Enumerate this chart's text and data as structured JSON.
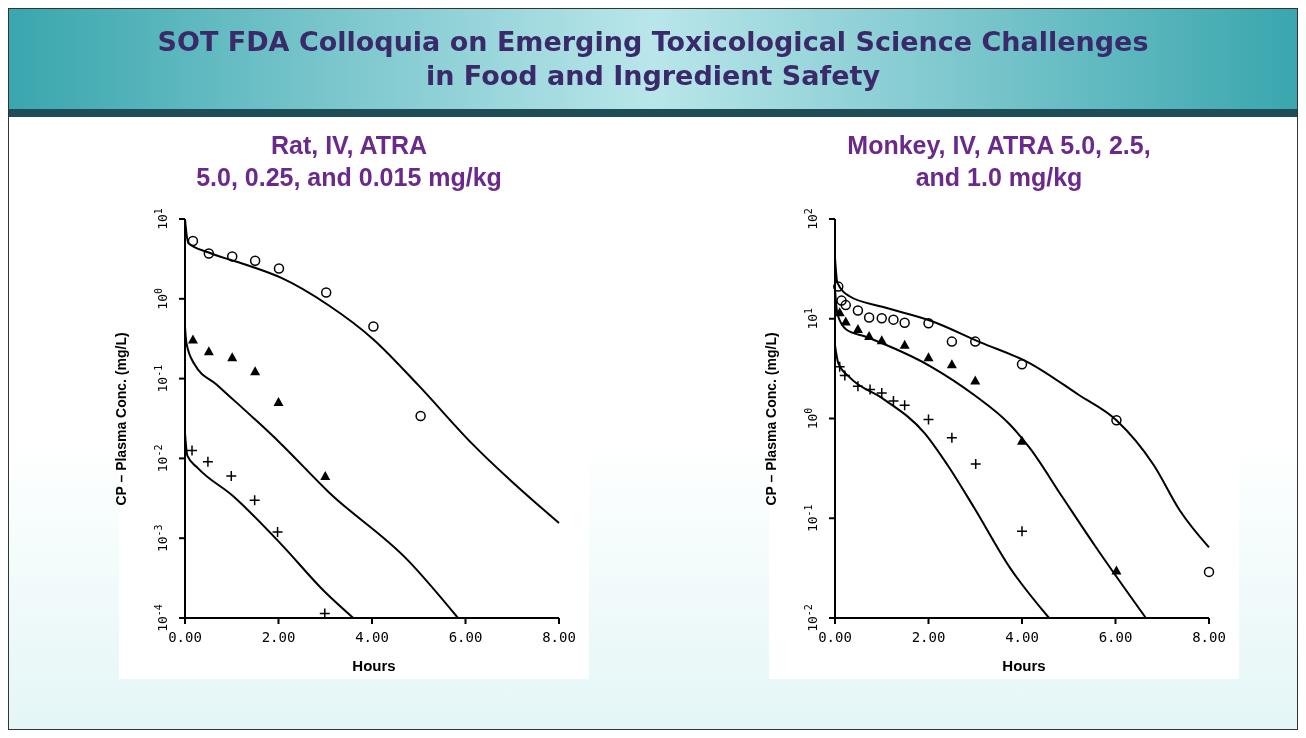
{
  "chart_data": [
    {
      "type": "scatter",
      "title": "Rat, IV, ATRA\n5.0, 0.25, and 0.015 mg/kg",
      "annotations": [
        "SOT FDA Colloquia on Emerging Toxicological Science Challenges\nin Food and Ingredient Safety"
      ],
      "xlabel": "Hours",
      "ylabel": "CP – Plasma Conc. (mg/L)",
      "log": "y",
      "xlim": [
        0,
        8
      ],
      "ylim": [
        0.0001,
        10
      ],
      "xticks": [
        {
          "value": 0,
          "label": "0.00"
        },
        {
          "value": 2,
          "label": "2.00"
        },
        {
          "value": 4,
          "label": "4.00"
        },
        {
          "value": 6,
          "label": "6.00"
        },
        {
          "value": 8,
          "label": "8.00"
        }
      ],
      "yticks": [
        {
          "value": 0.0001,
          "label": "10$^{-4}$"
        },
        {
          "value": 0.001,
          "label": "10$^{-3}$"
        },
        {
          "value": 0.01,
          "label": "10$^{-2}$"
        },
        {
          "value": 0.1,
          "label": "10$^{-1}$"
        },
        {
          "value": 1,
          "label": "10$^{0}$"
        },
        {
          "value": 10,
          "label": "10$^{1}$"
        }
      ],
      "series": [
        {
          "type": "line",
          "color": "#000000",
          "x": [
            0,
            0.07,
            0.51,
            1.37,
            2.05,
            3.07,
            4.03,
            4.98,
            6.14,
            8.0
          ],
          "values": [
            10,
            5.0,
            3.8,
            2.6,
            1.84,
            0.83,
            0.31,
            0.084,
            0.0153,
            0.00155
          ]
        },
        {
          "type": "line",
          "color": "#000000",
          "x": [
            0,
            0.03,
            0.2,
            0.68,
            2.05,
            3.07,
            4.78,
            5.84
          ],
          "values": [
            0.45,
            0.28,
            0.152,
            0.084,
            0.0153,
            0.0038,
            0.00052,
            0.0001
          ]
        },
        {
          "type": "line",
          "color": "#000000",
          "x": [
            0,
            0.05,
            0.27,
            1.02,
            2.05,
            3.0,
            3.6
          ],
          "values": [
            0.0207,
            0.0108,
            0.0076,
            0.0034,
            0.00085,
            0.00021,
            0.0001
          ]
        },
        {
          "marker": "circle",
          "color": "#000000",
          "x": [
            0.17,
            0.51,
            1.01,
            1.5,
            2.01,
            3.02,
            4.03,
            5.04
          ],
          "values": [
            5.3,
            3.7,
            3.4,
            3.0,
            2.4,
            1.2,
            0.45,
            0.034
          ]
        },
        {
          "marker": "triangle",
          "color": "#000000",
          "x": [
            0.17,
            0.51,
            1.01,
            1.5,
            2.0,
            3.0
          ],
          "values": [
            0.31,
            0.22,
            0.185,
            0.124,
            0.051,
            0.006
          ]
        },
        {
          "marker": "cross",
          "color": "#000000",
          "x": [
            0.15,
            0.49,
            0.99,
            1.49,
            1.98,
            2.99
          ],
          "values": [
            0.0126,
            0.0091,
            0.006,
            0.003,
            0.0012,
            0.000114
          ]
        }
      ]
    },
    {
      "type": "scatter",
      "title": "Monkey, IV, ATRA 5.0, 2.5,\nand 1.0 mg/kg",
      "xlabel": "Hours",
      "ylabel": "CP – Plasma Conc. (mg/L)",
      "log": "y",
      "xlim": [
        0,
        8
      ],
      "ylim": [
        0.01,
        100
      ],
      "xticks": [
        {
          "value": 0,
          "label": "0.00"
        },
        {
          "value": 2,
          "label": "2.00"
        },
        {
          "value": 4,
          "label": "4.00"
        },
        {
          "value": 6,
          "label": "6.00"
        },
        {
          "value": 8,
          "label": "8.00"
        }
      ],
      "yticks": [
        {
          "value": 0.01,
          "label": "10$^{-2}$"
        },
        {
          "value": 0.1,
          "label": "10$^{-1}$"
        },
        {
          "value": 1,
          "label": "10$^{0}$"
        },
        {
          "value": 10,
          "label": "10$^{1}$"
        },
        {
          "value": 100,
          "label": "10$^{2}$"
        }
      ],
      "series": [
        {
          "type": "line",
          "color": "#000000",
          "x": [
            0,
            0.05,
            0.31,
            1.01,
            2.06,
            3.11,
            4.16,
            5.21,
            6.02,
            6.82,
            7.38,
            8.0
          ],
          "values": [
            41,
            23,
            16.8,
            13.2,
            9.5,
            5.8,
            3.6,
            1.73,
            0.96,
            0.34,
            0.119,
            0.051
          ]
        },
        {
          "type": "line",
          "color": "#000000",
          "x": [
            0,
            0.05,
            0.24,
            0.66,
            2.06,
            2.97,
            3.74,
            4.16,
            4.86,
            5.56,
            6.65
          ],
          "values": [
            19.7,
            11.2,
            7.8,
            6.6,
            3.3,
            1.73,
            0.87,
            0.51,
            0.164,
            0.053,
            0.01
          ]
        },
        {
          "type": "line",
          "color": "#000000",
          "x": [
            0,
            0.07,
            0.31,
            1.01,
            1.92,
            2.41,
            2.97,
            3.74,
            4.58
          ],
          "values": [
            5.4,
            3.6,
            2.6,
            1.6,
            0.71,
            0.34,
            0.129,
            0.032,
            0.01
          ]
        },
        {
          "marker": "circle",
          "color": "#000000",
          "x": [
            0.07,
            0.14,
            0.23,
            0.49,
            0.73,
            1.0,
            1.25,
            1.49,
            2.0,
            2.5,
            3.0,
            4.0,
            6.02,
            8.0
          ],
          "values": [
            21,
            15.2,
            13.7,
            12.1,
            10.3,
            10.1,
            9.8,
            9.1,
            9.0,
            5.9,
            5.9,
            3.5,
            0.96,
            0.029
          ]
        },
        {
          "marker": "triangle",
          "color": "#000000",
          "x": [
            0.1,
            0.23,
            0.49,
            0.73,
            1.0,
            1.49,
            2.0,
            2.5,
            3.0,
            4.0,
            6.02
          ],
          "values": [
            11.6,
            9.4,
            7.9,
            6.7,
            6.1,
            5.5,
            4.1,
            3.5,
            2.4,
            0.6,
            0.03
          ]
        },
        {
          "marker": "cross",
          "color": "#000000",
          "x": [
            0.1,
            0.21,
            0.49,
            0.75,
            1.0,
            1.25,
            1.49,
            2.0,
            2.5,
            3.01,
            4.0
          ],
          "values": [
            3.3,
            2.7,
            2.1,
            1.95,
            1.8,
            1.5,
            1.36,
            0.98,
            0.64,
            0.35,
            0.074
          ]
        }
      ]
    }
  ]
}
